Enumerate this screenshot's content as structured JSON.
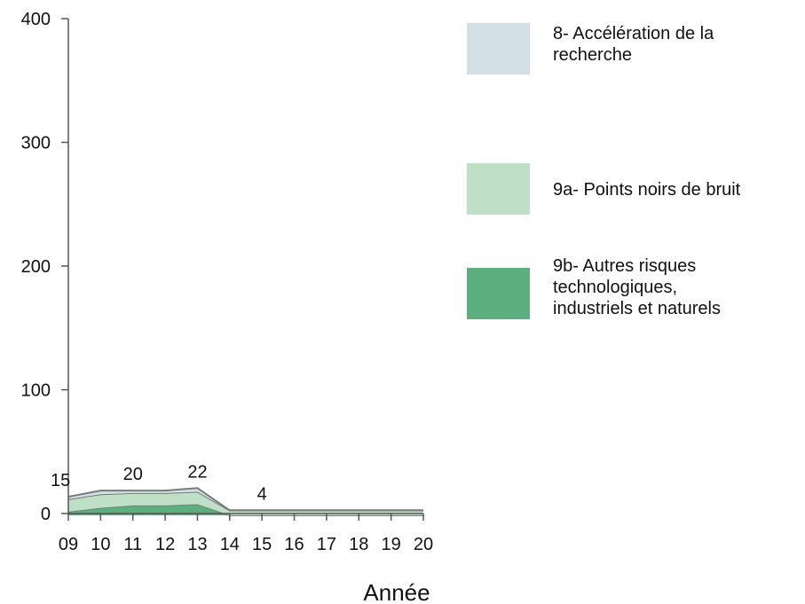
{
  "chart_data": {
    "type": "area",
    "stacked": true,
    "xlabel": "Année",
    "ylabel": "",
    "title": "",
    "ylim": [
      0,
      400
    ],
    "yticks": [
      0,
      100,
      200,
      300,
      400
    ],
    "categories": [
      "09",
      "10",
      "11",
      "12",
      "13",
      "14",
      "15",
      "16",
      "17",
      "18",
      "19",
      "20"
    ],
    "series": [
      {
        "name": "9b- Autres risques\ntechnologiques,\nindustriels et naturels",
        "color": "#5daf80",
        "values": [
          3,
          6,
          8,
          8,
          9,
          0,
          0,
          0,
          0,
          0,
          0,
          0
        ]
      },
      {
        "name": "9a- Points noirs de bruit",
        "color": "#bfe0c6",
        "values": [
          10,
          11,
          10,
          10,
          10,
          4,
          4,
          4,
          4,
          4,
          4,
          4
        ]
      },
      {
        "name": "8- Accélération de la\n recherche",
        "color": "#d2e0e6",
        "values": [
          2,
          3,
          2,
          2,
          3,
          0,
          0,
          0,
          0,
          0,
          0,
          0
        ]
      }
    ],
    "data_labels": [
      {
        "x": "09",
        "text": "15"
      },
      {
        "x": "11",
        "text": "20"
      },
      {
        "x": "13",
        "text": "22"
      },
      {
        "x": "15",
        "text": "4"
      }
    ],
    "legend": {
      "placement": "right",
      "order": [
        2,
        1,
        0
      ]
    },
    "grid": false
  }
}
